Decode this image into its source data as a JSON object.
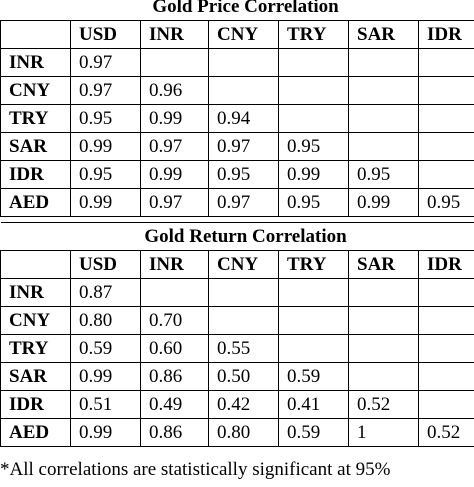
{
  "tables": [
    {
      "title": "Gold Price Correlation",
      "header": [
        "USD",
        "INR",
        "CNY",
        "TRY",
        "SAR",
        "IDR"
      ],
      "rows": [
        [
          "INR",
          "0.97"
        ],
        [
          "CNY",
          "0.97",
          "0.96"
        ],
        [
          "TRY",
          "0.95",
          "0.99",
          "0.94"
        ],
        [
          "SAR",
          "0.99",
          "0.97",
          "0.97",
          "0.95"
        ],
        [
          "IDR",
          "0.95",
          "0.99",
          "0.95",
          "0.99",
          "0.95"
        ],
        [
          "AED",
          "0.99",
          "0.97",
          "0.97",
          "0.95",
          "0.99",
          "0.95"
        ]
      ]
    },
    {
      "title": "Gold Return Correlation",
      "header": [
        "USD",
        "INR",
        "CNY",
        "TRY",
        "SAR",
        "IDR"
      ],
      "rows": [
        [
          "INR",
          "0.87"
        ],
        [
          "CNY",
          "0.80",
          "0.70"
        ],
        [
          "TRY",
          "0.59",
          "0.60",
          "0.55"
        ],
        [
          "SAR",
          "0.99",
          "0.86",
          "0.50",
          "0.59"
        ],
        [
          "IDR",
          "0.51",
          "0.49",
          "0.42",
          "0.41",
          "0.52"
        ],
        [
          "AED",
          "0.99",
          "0.86",
          "0.80",
          "0.59",
          "1",
          "0.52"
        ]
      ]
    }
  ],
  "footnote": "*All correlations are statistically significant at 95%"
}
